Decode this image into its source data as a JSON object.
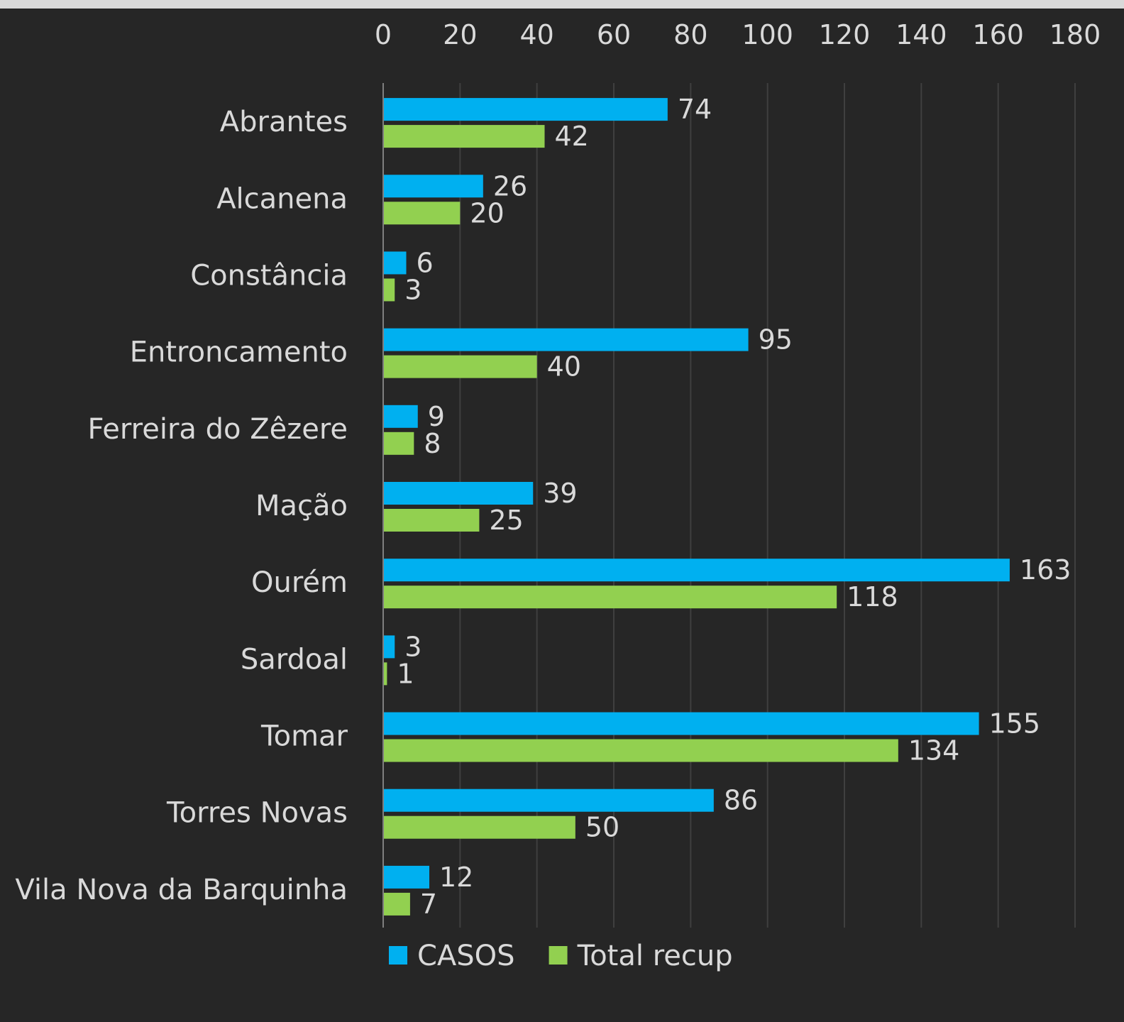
{
  "chart_data": {
    "type": "bar",
    "orientation": "horizontal",
    "categories": [
      "Abrantes",
      "Alcanena",
      "Constância",
      "Entroncamento",
      "Ferreira do Zêzere",
      "Mação",
      "Ourém",
      "Sardoal",
      "Tomar",
      "Torres Novas",
      "Vila Nova da Barquinha"
    ],
    "series": [
      {
        "name": "CASOS",
        "color": "#00b0f0",
        "values": [
          74,
          26,
          6,
          95,
          9,
          39,
          163,
          3,
          155,
          86,
          12
        ]
      },
      {
        "name": "Total recup",
        "color": "#92d050",
        "values": [
          42,
          20,
          3,
          40,
          8,
          25,
          118,
          1,
          134,
          50,
          7
        ]
      }
    ],
    "xlim": [
      0,
      180
    ],
    "xticks": [
      0,
      20,
      40,
      60,
      80,
      100,
      120,
      140,
      160,
      180
    ],
    "x_axis_position": "top",
    "grid": true,
    "data_labels": true,
    "legend": "bottom",
    "colors": {
      "background": "#262626",
      "text": "#d9d9d9",
      "grid": "#3f3f3f",
      "top_bar": "#d9d9d9"
    }
  }
}
